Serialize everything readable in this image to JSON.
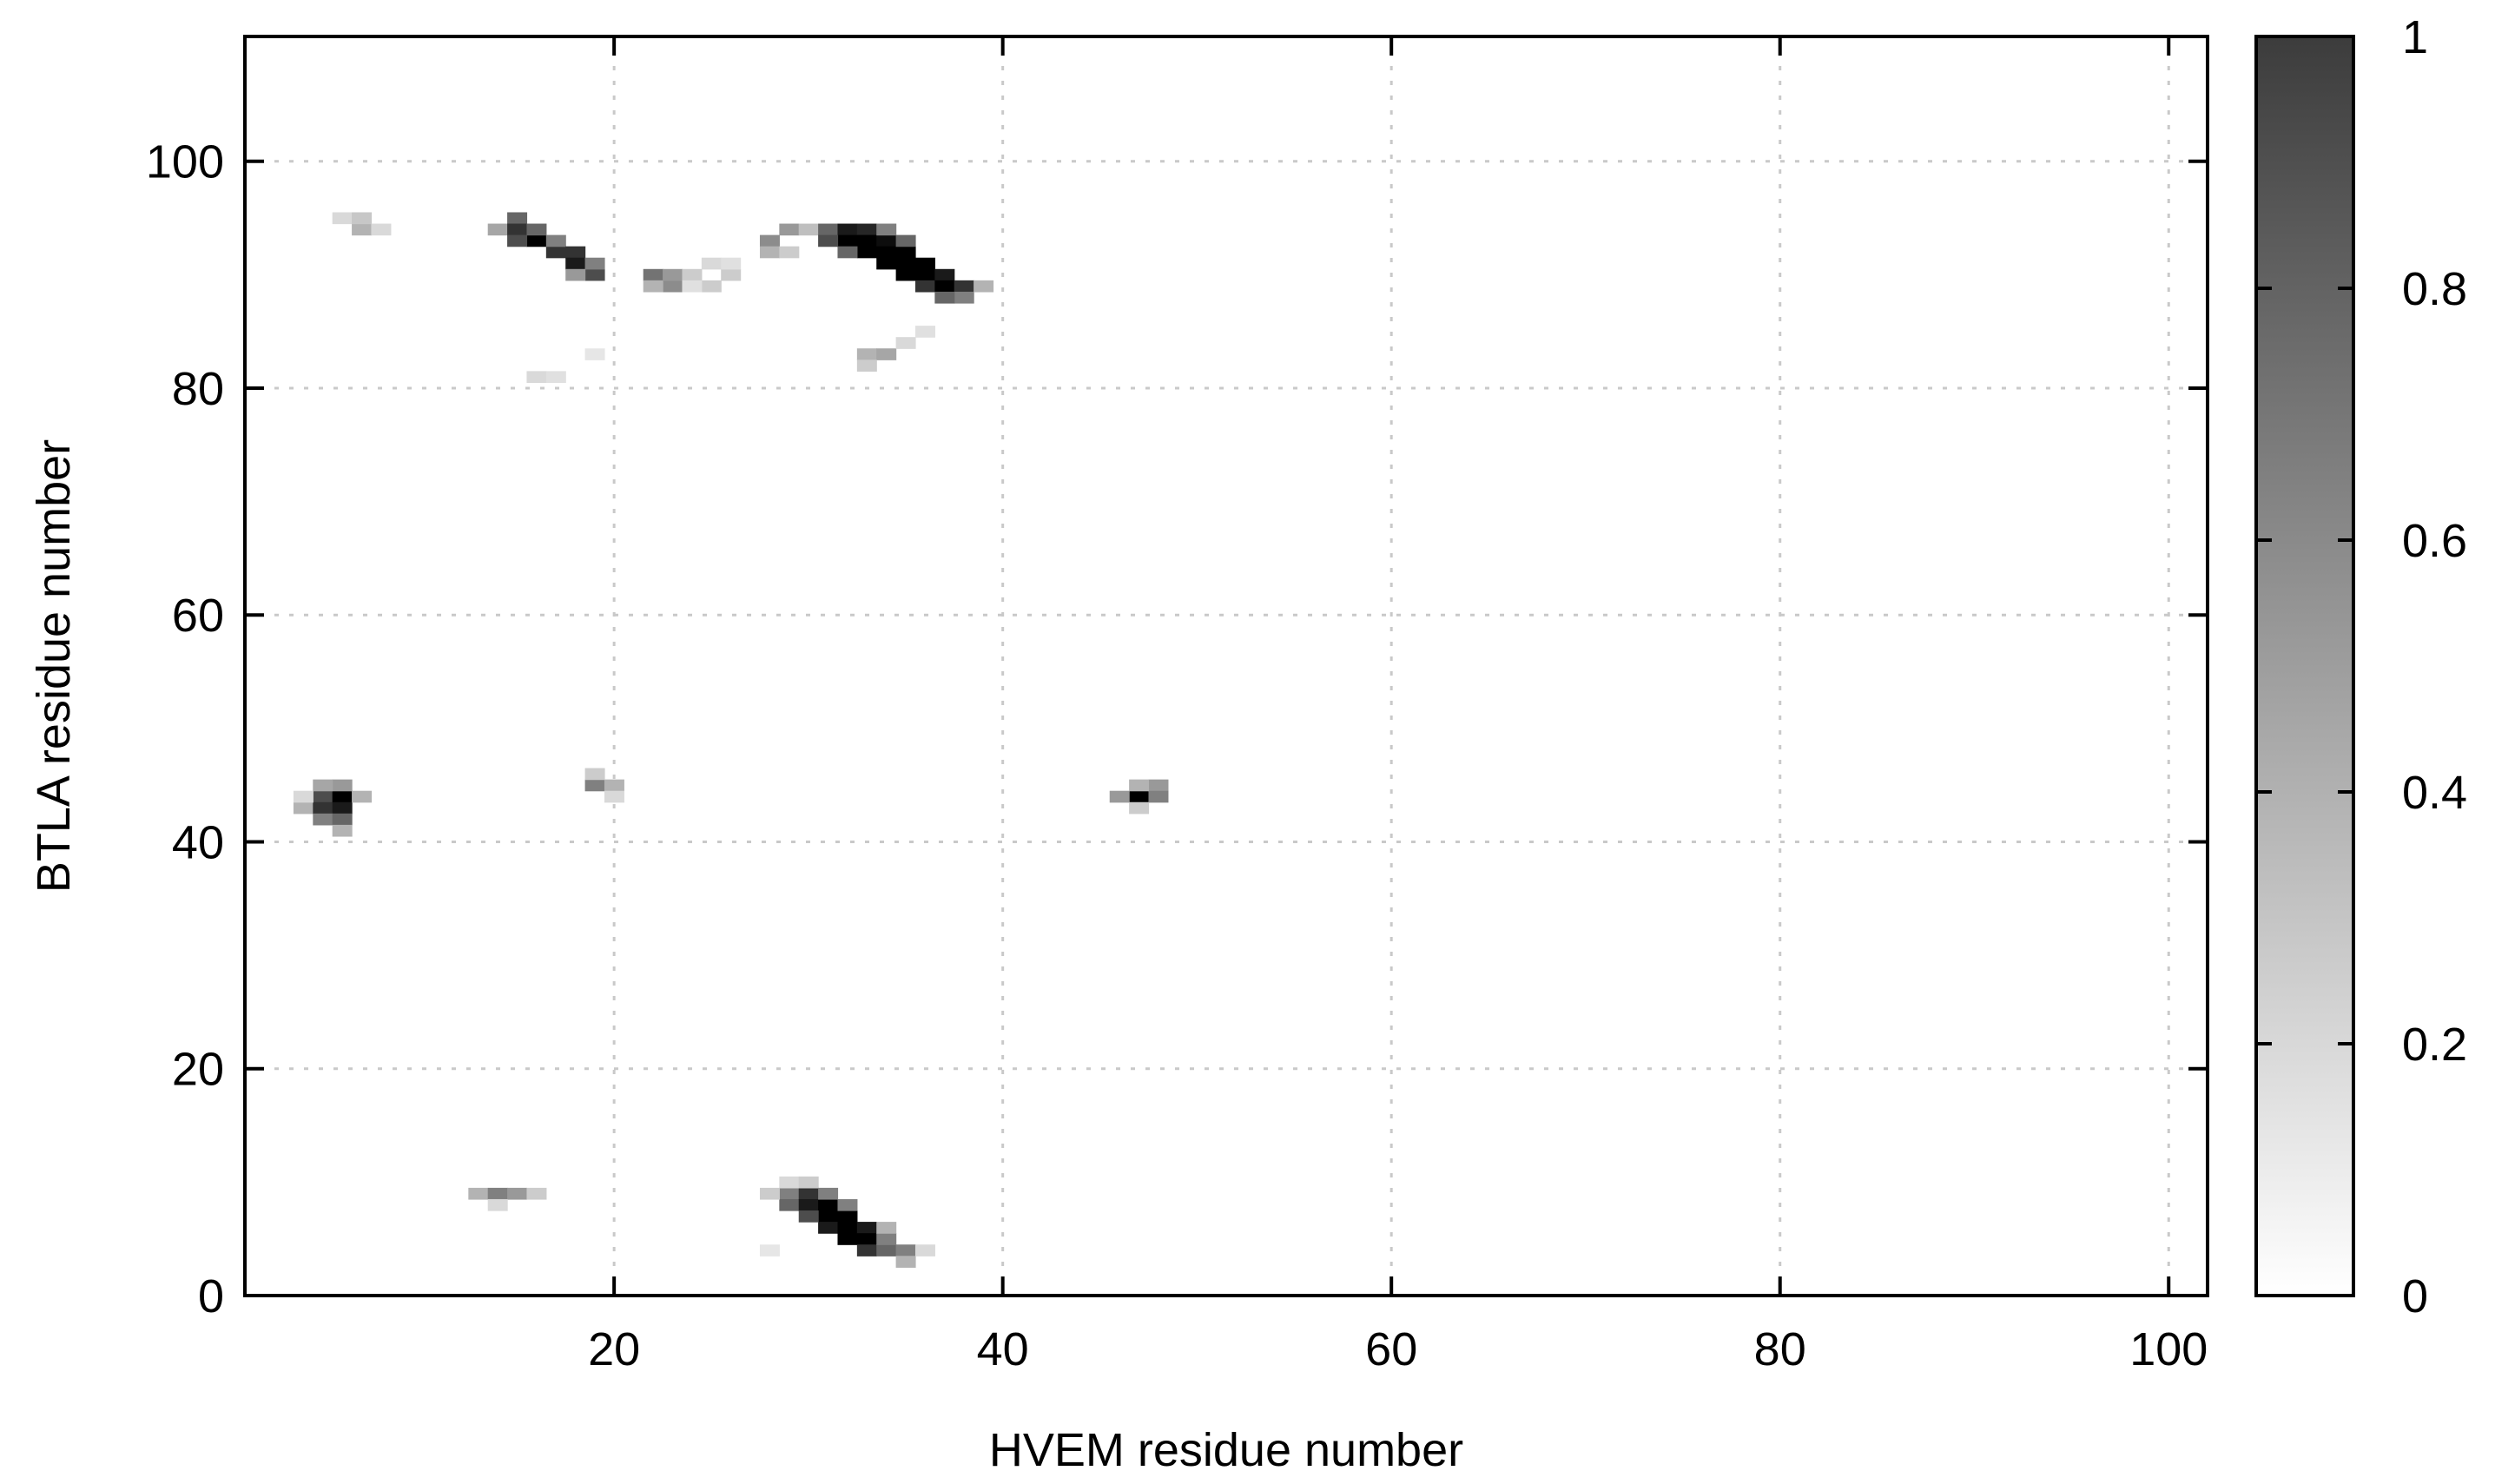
{
  "chart_data": {
    "type": "heatmap",
    "title": "",
    "xlabel": "HVEM residue number",
    "ylabel": "BTLA residue number",
    "xlim": [
      1,
      102
    ],
    "ylim": [
      0,
      111
    ],
    "x_ticks": [
      20,
      40,
      60,
      80,
      100
    ],
    "y_ticks": [
      0,
      20,
      40,
      60,
      80,
      100
    ],
    "grid": true,
    "colorbar": {
      "min": 0,
      "max": 1,
      "ticks": [
        0,
        0.2,
        0.4,
        0.6,
        0.8,
        1
      ],
      "colormap": "grayscale (white = 0, black = 1)",
      "position": "right"
    },
    "cells": [
      [
        6,
        95,
        0.15
      ],
      [
        7,
        94,
        0.3
      ],
      [
        7,
        95,
        0.22
      ],
      [
        8,
        94,
        0.15
      ],
      [
        14,
        94,
        0.35
      ],
      [
        15,
        95,
        0.6
      ],
      [
        15,
        94,
        0.8
      ],
      [
        16,
        93,
        1.0
      ],
      [
        15,
        93,
        0.7
      ],
      [
        16,
        94,
        0.6
      ],
      [
        17,
        92,
        0.8
      ],
      [
        17,
        93,
        0.5
      ],
      [
        18,
        92,
        0.8
      ],
      [
        18,
        91,
        0.9
      ],
      [
        19,
        90,
        0.7
      ],
      [
        19,
        91,
        0.5
      ],
      [
        18,
        90,
        0.4
      ],
      [
        16,
        81,
        0.15
      ],
      [
        17,
        81,
        0.12
      ],
      [
        19,
        83,
        0.1
      ],
      [
        22,
        90,
        0.55
      ],
      [
        23,
        89,
        0.45
      ],
      [
        22,
        89,
        0.3
      ],
      [
        23,
        90,
        0.4
      ],
      [
        24,
        90,
        0.2
      ],
      [
        25,
        91,
        0.15
      ],
      [
        26,
        90,
        0.2
      ],
      [
        25,
        89,
        0.2
      ],
      [
        26,
        91,
        0.12
      ],
      [
        24,
        89,
        0.12
      ],
      [
        28,
        93,
        0.45
      ],
      [
        29,
        94,
        0.4
      ],
      [
        28,
        92,
        0.3
      ],
      [
        29,
        92,
        0.2
      ],
      [
        30,
        94,
        0.25
      ],
      [
        31,
        94,
        0.6
      ],
      [
        32,
        94,
        0.9
      ],
      [
        32,
        93,
        1.0
      ],
      [
        33,
        94,
        0.85
      ],
      [
        33,
        93,
        1.0
      ],
      [
        33,
        92,
        1.0
      ],
      [
        34,
        93,
        0.95
      ],
      [
        34,
        92,
        1.0
      ],
      [
        34,
        91,
        1.0
      ],
      [
        35,
        92,
        1.0
      ],
      [
        35,
        91,
        1.0
      ],
      [
        35,
        90,
        1.0
      ],
      [
        36,
        91,
        1.0
      ],
      [
        36,
        90,
        1.0
      ],
      [
        36,
        89,
        0.8
      ],
      [
        37,
        90,
        0.9
      ],
      [
        37,
        89,
        1.0
      ],
      [
        38,
        89,
        0.8
      ],
      [
        38,
        88,
        0.5
      ],
      [
        37,
        88,
        0.6
      ],
      [
        32,
        92,
        0.6
      ],
      [
        31,
        93,
        0.7
      ],
      [
        34,
        94,
        0.5
      ],
      [
        35,
        93,
        0.6
      ],
      [
        39,
        89,
        0.3
      ],
      [
        33,
        83,
        0.3
      ],
      [
        34,
        83,
        0.35
      ],
      [
        33,
        82,
        0.2
      ],
      [
        35,
        84,
        0.15
      ],
      [
        36,
        85,
        0.12
      ],
      [
        4,
        43,
        0.3
      ],
      [
        5,
        44,
        0.7
      ],
      [
        5,
        43,
        0.8
      ],
      [
        6,
        44,
        1.0
      ],
      [
        6,
        43,
        0.9
      ],
      [
        6,
        45,
        0.4
      ],
      [
        7,
        44,
        0.3
      ],
      [
        5,
        42,
        0.5
      ],
      [
        6,
        42,
        0.6
      ],
      [
        5,
        45,
        0.35
      ],
      [
        6,
        41,
        0.3
      ],
      [
        4,
        44,
        0.15
      ],
      [
        19,
        45,
        0.5
      ],
      [
        20,
        45,
        0.3
      ],
      [
        19,
        46,
        0.2
      ],
      [
        20,
        44,
        0.15
      ],
      [
        47,
        44,
        1.0
      ],
      [
        48,
        45,
        0.4
      ],
      [
        46,
        44,
        0.4
      ],
      [
        48,
        44,
        0.5
      ],
      [
        47,
        45,
        0.3
      ],
      [
        47,
        43,
        0.2
      ],
      [
        13,
        9,
        0.3
      ],
      [
        14,
        9,
        0.5
      ],
      [
        15,
        9,
        0.4
      ],
      [
        16,
        9,
        0.2
      ],
      [
        14,
        8,
        0.15
      ],
      [
        29,
        9,
        0.5
      ],
      [
        29,
        8,
        0.6
      ],
      [
        30,
        9,
        0.8
      ],
      [
        30,
        8,
        0.9
      ],
      [
        31,
        8,
        1.0
      ],
      [
        31,
        7,
        1.0
      ],
      [
        32,
        7,
        1.0
      ],
      [
        31,
        6,
        0.9
      ],
      [
        32,
        6,
        1.0
      ],
      [
        32,
        5,
        1.0
      ],
      [
        33,
        6,
        0.9
      ],
      [
        33,
        5,
        1.0
      ],
      [
        33,
        4,
        0.8
      ],
      [
        34,
        4,
        0.6
      ],
      [
        35,
        4,
        0.5
      ],
      [
        35,
        3,
        0.3
      ],
      [
        30,
        7,
        0.7
      ],
      [
        29,
        10,
        0.15
      ],
      [
        30,
        10,
        0.2
      ],
      [
        28,
        9,
        0.2
      ],
      [
        31,
        9,
        0.5
      ],
      [
        32,
        8,
        0.5
      ],
      [
        34,
        5,
        0.5
      ],
      [
        34,
        6,
        0.3
      ],
      [
        28,
        4,
        0.1
      ],
      [
        36,
        4,
        0.15
      ]
    ]
  }
}
